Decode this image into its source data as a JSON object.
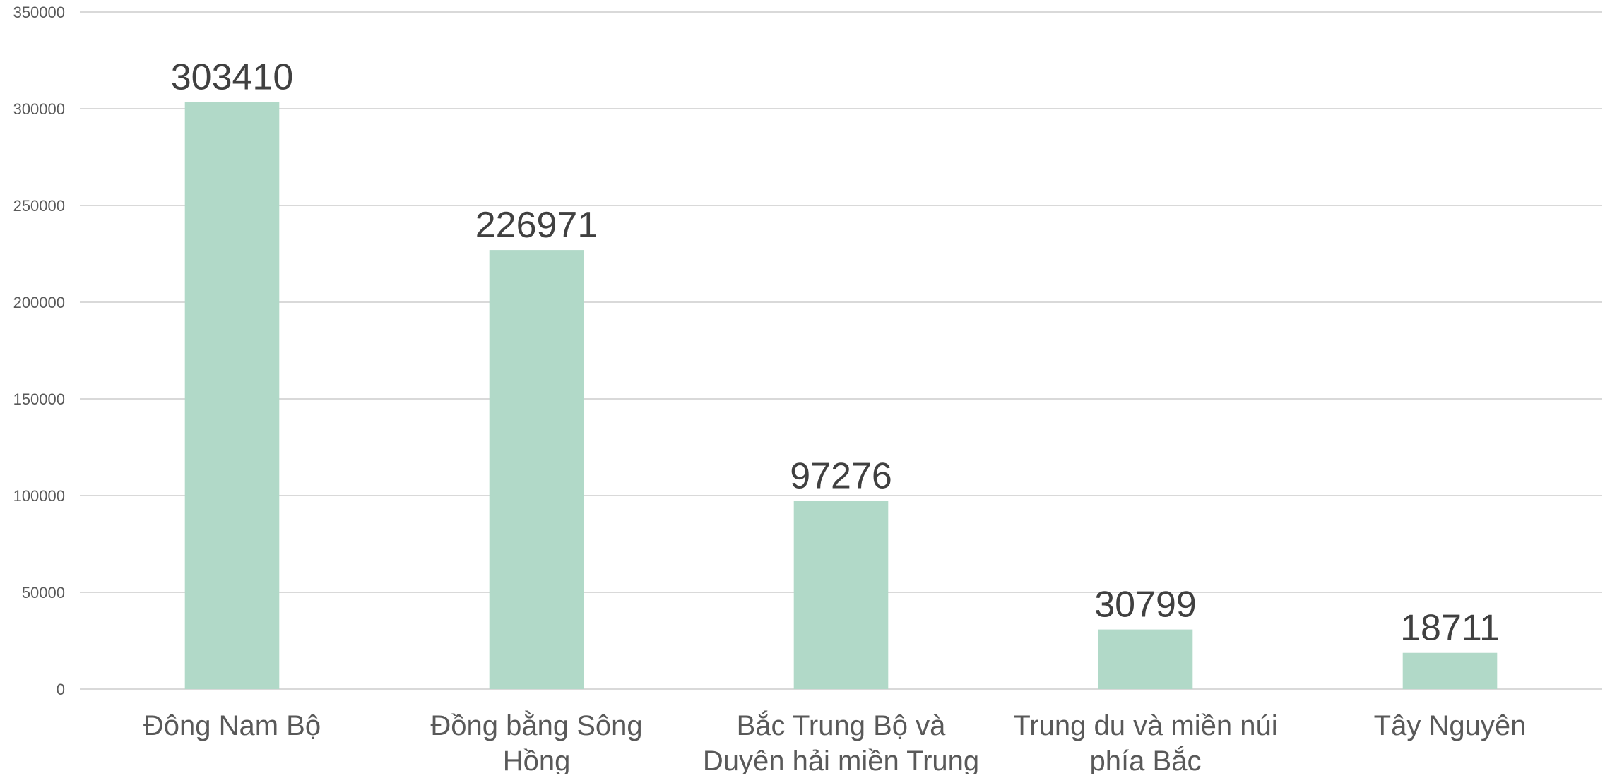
{
  "chart_data": {
    "type": "bar",
    "title": "",
    "xlabel": "",
    "ylabel": "",
    "ylim": [
      0,
      350000
    ],
    "y_ticks": [
      0,
      50000,
      100000,
      150000,
      200000,
      250000,
      300000,
      350000
    ],
    "grid": true,
    "legend": "none",
    "bar_color": "#b1d9c8",
    "categories": [
      "Đông Nam Bộ",
      "Đồng bằng Sông Hồng",
      "Bắc Trung Bộ và Duyên hải miền Trung",
      "Trung du và miền núi phía Bắc",
      "Tây Nguyên"
    ],
    "category_lines": [
      [
        "Đông Nam Bộ"
      ],
      [
        "Đồng bằng Sông",
        "Hồng"
      ],
      [
        "Bắc Trung Bộ và",
        "Duyên hải miền Trung"
      ],
      [
        "Trung du và miền núi",
        "phía Bắc"
      ],
      [
        "Tây Nguyên"
      ]
    ],
    "values": [
      303410,
      226971,
      97276,
      30799,
      18711
    ],
    "data_labels": [
      "303410",
      "226971",
      "97276",
      "30799",
      "18711"
    ]
  }
}
